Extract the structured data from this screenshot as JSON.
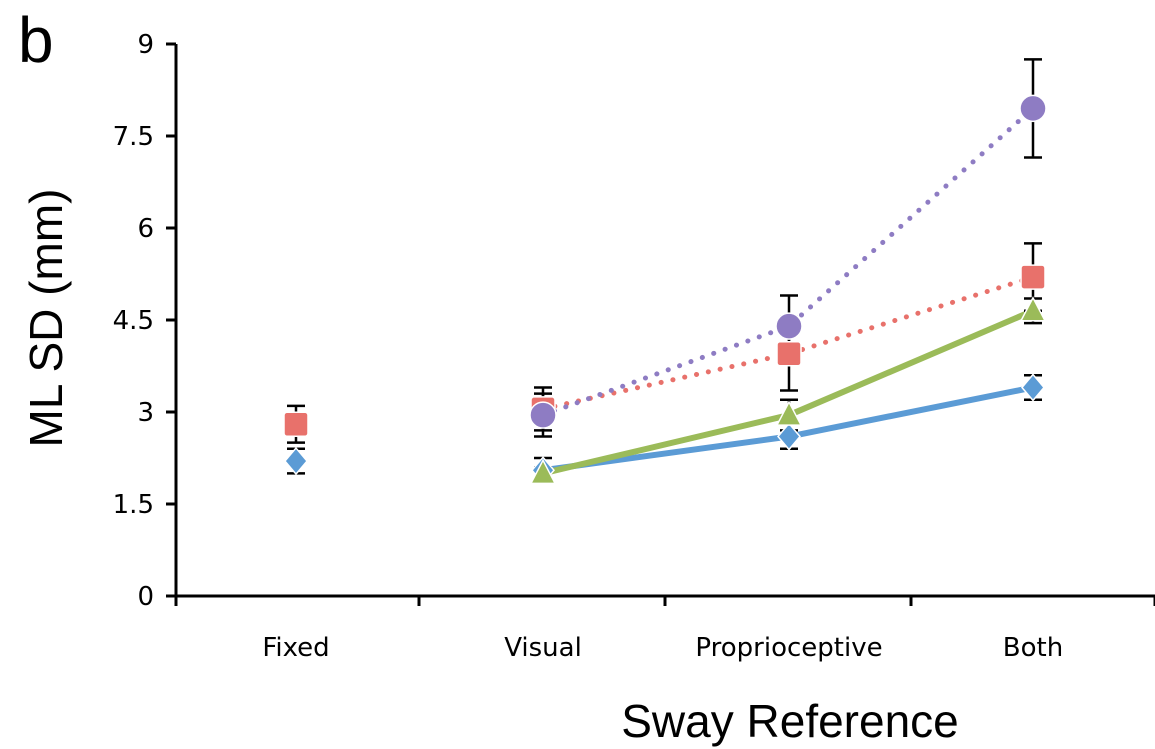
{
  "panel_label": "b",
  "chart_data": {
    "type": "line",
    "ylabel": "ML SD (mm)",
    "xlabel": "Sway Reference",
    "categories": [
      "Fixed",
      "Visual",
      "Proprioceptive",
      "Both"
    ],
    "ylim": [
      0,
      9
    ],
    "yticks": [
      0,
      1.5,
      3,
      4.5,
      6,
      7.5,
      9
    ],
    "ytick_labels": [
      "0",
      "1.5",
      "3",
      "4.5",
      "6",
      "7.5",
      "9"
    ],
    "grid": false,
    "series": [
      {
        "marker": "diamond",
        "color": "#5b9bd5",
        "line": "solid",
        "connected_from": 1,
        "values": [
          2.2,
          2.05,
          2.6,
          3.4
        ],
        "error": [
          0.2,
          0.2,
          0.2,
          0.2
        ]
      },
      {
        "marker": "square",
        "color": "#e8716b",
        "line": "dotted",
        "connected_from": 1,
        "values": [
          2.8,
          3.05,
          3.95,
          5.2
        ],
        "error": [
          0.3,
          0.35,
          0.6,
          0.55
        ]
      },
      {
        "marker": "triangle",
        "color": "#9bbb59",
        "line": "solid",
        "connected_from": 1,
        "values": [
          null,
          2.0,
          2.95,
          4.65
        ],
        "error": [
          null,
          0.1,
          0.25,
          0.2
        ]
      },
      {
        "marker": "circle",
        "color": "#8e7cc3",
        "line": "dotted",
        "connected_from": 1,
        "values": [
          null,
          2.95,
          4.4,
          7.95
        ],
        "error": [
          null,
          0.35,
          0.5,
          0.8
        ]
      }
    ]
  }
}
